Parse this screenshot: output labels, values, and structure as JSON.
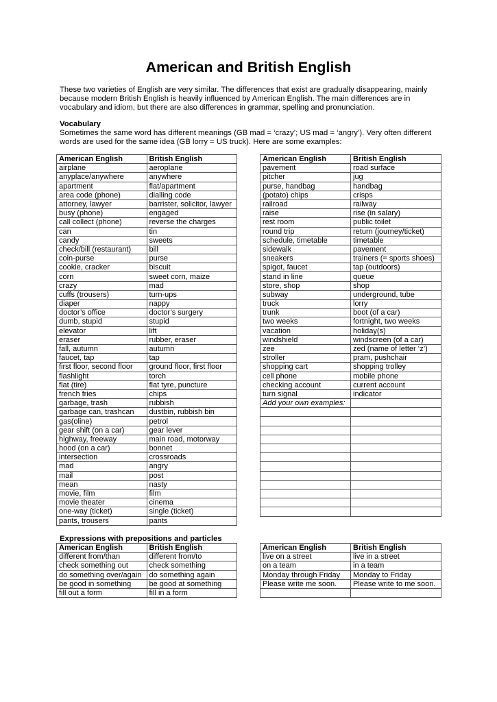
{
  "title": "American and British English",
  "intro": "These two varieties of English are very similar. The differences that exist are gradually disappearing, mainly because modern British English is heavily influenced by American English. The main differences are in vocabulary and idiom, but there are also differences in grammar, spelling and pronunciation.",
  "vocabulary": {
    "heading": "Vocabulary",
    "text": "Sometimes the same word has different meanings (GB mad = ‘crazy’; US mad = ‘angry’). Very often different words are used for the same idea (GB lorry = US truck). Here are some examples:",
    "headers": [
      "American English",
      "British English"
    ],
    "left_rows": [
      [
        "airplane",
        "aeroplane"
      ],
      [
        "anyplace/anywhere",
        "anywhere"
      ],
      [
        "apartment",
        "flat/apartment"
      ],
      [
        "area code (phone)",
        "dialling code"
      ],
      [
        "attorney, lawyer",
        "barrister, solicitor, lawyer"
      ],
      [
        "busy (phone)",
        "engaged"
      ],
      [
        "call collect (phone)",
        "reverse the charges"
      ],
      [
        "can",
        "tin"
      ],
      [
        "candy",
        "sweets"
      ],
      [
        "check/bill (restaurant)",
        "bill"
      ],
      [
        "coin-purse",
        "purse"
      ],
      [
        "cookie, cracker",
        "biscuit"
      ],
      [
        "corn",
        "sweet corn,  maize"
      ],
      [
        "crazy",
        "mad"
      ],
      [
        "cuffs (trousers)",
        "turn-ups"
      ],
      [
        "diaper",
        "nappy"
      ],
      [
        "doctor’s office",
        "doctor’s surgery"
      ],
      [
        "dumb, stupid",
        "stupid"
      ],
      [
        "elevator",
        "lift"
      ],
      [
        "eraser",
        "rubber, eraser"
      ],
      [
        "fall, autumn",
        "autumn"
      ],
      [
        "faucet, tap",
        "tap"
      ],
      [
        "first floor, second floor",
        "ground floor, first floor"
      ],
      [
        "flashlight",
        "torch"
      ],
      [
        "flat (tire)",
        "flat tyre, puncture"
      ],
      [
        "french fries",
        "chips"
      ],
      [
        "garbage, trash",
        "rubbish"
      ],
      [
        "garbage can, trashcan",
        "dustbin, rubbish bin"
      ],
      [
        "gas(oline)",
        "petrol"
      ],
      [
        "gear shift (on a car)",
        "gear lever"
      ],
      [
        "highway, freeway",
        "main road, motorway"
      ],
      [
        "hood (on a car)",
        "bonnet"
      ],
      [
        "intersection",
        "crossroads"
      ],
      [
        "mad",
        "angry"
      ],
      [
        "mail",
        "post"
      ],
      [
        "mean",
        "nasty"
      ],
      [
        "movie, film",
        "film"
      ],
      [
        "movie theater",
        "cinema"
      ],
      [
        "one-way (ticket)",
        "single (ticket)"
      ],
      [
        "pants, trousers",
        "pants"
      ]
    ],
    "right_rows": [
      [
        "pavement",
        "road surface"
      ],
      [
        "pitcher",
        "jug"
      ],
      [
        "purse, handbag",
        "handbag"
      ],
      [
        "(potato) chips",
        "crisps"
      ],
      [
        "railroad",
        "railway"
      ],
      [
        "raise",
        "rise (in salary)"
      ],
      [
        "rest room",
        "public toilet"
      ],
      [
        "round trip",
        "return (journey/ticket)"
      ],
      [
        "schedule, timetable",
        "timetable"
      ],
      [
        "sidewalk",
        "pavement"
      ],
      [
        "sneakers",
        "trainers (= sports shoes)"
      ],
      [
        "spigot, faucet",
        "tap (outdoors)"
      ],
      [
        "stand in line",
        "queue"
      ],
      [
        "store, shop",
        "shop"
      ],
      [
        "subway",
        "underground, tube"
      ],
      [
        "truck",
        "lorry"
      ],
      [
        "trunk",
        "boot (of a car)"
      ],
      [
        "two weeks",
        "fortnight, two weeks"
      ],
      [
        "vacation",
        "holiday(s)"
      ],
      [
        "windshield",
        "windscreen (of a car)"
      ],
      [
        "zee",
        "zed (name of letter ‘z’)"
      ],
      [
        "stroller",
        "pram, pushchair"
      ],
      [
        "shopping cart",
        "shopping trolley"
      ],
      [
        "cell phone",
        "mobile phone"
      ],
      [
        "checking account",
        "current account"
      ],
      [
        "turn signal",
        "indicator"
      ],
      [
        "Add your own examples:",
        ""
      ],
      [
        "",
        ""
      ],
      [
        "",
        ""
      ],
      [
        "",
        ""
      ],
      [
        "",
        ""
      ],
      [
        "",
        ""
      ],
      [
        "",
        ""
      ],
      [
        "",
        ""
      ],
      [
        "",
        ""
      ],
      [
        "",
        ""
      ],
      [
        "",
        ""
      ],
      [
        "",
        ""
      ],
      [
        "",
        ""
      ]
    ]
  },
  "expressions": {
    "heading": "Expressions with prepositions and particles",
    "headers": [
      "American English",
      "British English"
    ],
    "left_rows": [
      [
        "different from/than",
        "different from/to"
      ],
      [
        "check something out",
        "check something"
      ],
      [
        "do something over/again",
        "do something again"
      ],
      [
        "be good in something",
        "be good at something"
      ],
      [
        "fill out a form",
        "fill in a form"
      ]
    ],
    "right_rows": [
      [
        "live on a street",
        "live in a street"
      ],
      [
        "on a team",
        "in a team"
      ],
      [
        "Monday through Friday",
        "Monday to Friday"
      ],
      [
        "Please write me soon.",
        "Please write to me soon."
      ],
      [
        "",
        ""
      ]
    ]
  }
}
